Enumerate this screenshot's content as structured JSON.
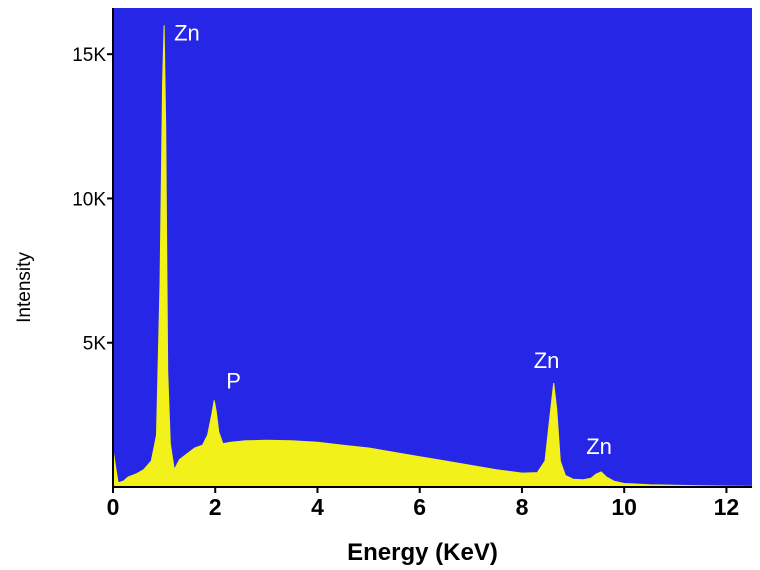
{
  "chart_data": {
    "type": "area",
    "title": "",
    "xlabel": "Energy (KeV)",
    "ylabel": "Intensity",
    "xlim": [
      0,
      12.5
    ],
    "ylim": [
      0,
      16600
    ],
    "x_ticks": [
      0,
      2,
      4,
      6,
      8,
      10,
      12
    ],
    "y_ticks": [
      {
        "value": 5000,
        "label": "5K"
      },
      {
        "value": 10000,
        "label": "10K"
      },
      {
        "value": 15000,
        "label": "15K"
      }
    ],
    "background_color": "#2626e6",
    "fill_color": "#f2f21a",
    "grid": false,
    "series": [
      {
        "x": [
          0,
          0.05,
          0.1,
          0.2,
          0.3,
          0.45,
          0.6,
          0.75,
          0.85,
          0.92,
          0.97,
          1.0,
          1.03,
          1.07,
          1.12,
          1.2,
          1.3,
          1.45,
          1.6,
          1.75,
          1.85,
          1.93,
          1.98,
          2.02,
          2.07,
          2.15,
          2.3,
          2.6,
          3.0,
          3.5,
          4.0,
          4.5,
          5.0,
          5.5,
          6.0,
          6.5,
          7.0,
          7.5,
          8.0,
          8.3,
          8.45,
          8.55,
          8.62,
          8.68,
          8.75,
          8.85,
          9.0,
          9.2,
          9.35,
          9.45,
          9.55,
          9.65,
          9.8,
          10.0,
          10.5,
          11.0,
          11.5,
          12.0,
          12.5
        ],
        "values": [
          1300,
          700,
          150,
          200,
          350,
          450,
          600,
          900,
          1800,
          7000,
          14000,
          16000,
          12500,
          4000,
          1500,
          600,
          950,
          1150,
          1350,
          1450,
          1800,
          2500,
          3000,
          2600,
          1900,
          1500,
          1550,
          1600,
          1620,
          1600,
          1550,
          1450,
          1350,
          1200,
          1050,
          900,
          750,
          600,
          480,
          500,
          900,
          2500,
          3600,
          2700,
          900,
          400,
          270,
          250,
          300,
          450,
          520,
          350,
          200,
          120,
          80,
          60,
          40,
          30,
          20
        ]
      }
    ],
    "annotations": [
      {
        "text": "Zn",
        "x": 1.0,
        "y": 16000
      },
      {
        "text": "P",
        "x": 2.02,
        "y": 3000
      },
      {
        "text": "Zn",
        "x": 8.62,
        "y": 3600
      },
      {
        "text": "Zn",
        "x": 9.55,
        "y": 520
      }
    ]
  }
}
